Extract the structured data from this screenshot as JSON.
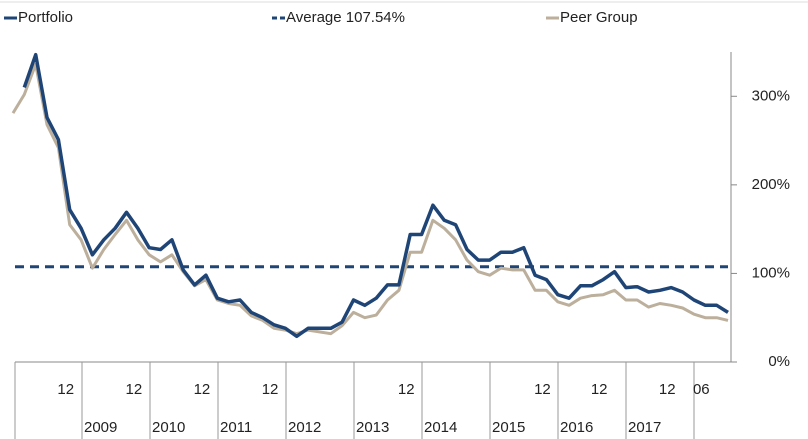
{
  "chart_data": {
    "type": "line",
    "categories": [
      null,
      null,
      null,
      null,
      null,
      "12",
      null,
      null,
      null,
      null,
      null,
      "12",
      null,
      null,
      null,
      null,
      null,
      "12",
      null,
      null,
      null,
      null,
      null,
      "12",
      null,
      null,
      null,
      null,
      null,
      null,
      null,
      null,
      null,
      null,
      null,
      "12",
      null,
      null,
      null,
      null,
      null,
      null,
      null,
      null,
      null,
      null,
      null,
      "12",
      null,
      null,
      null,
      null,
      "12",
      null,
      null,
      null,
      null,
      null,
      "12",
      null,
      null,
      "06",
      null,
      null
    ],
    "years": [
      "2009",
      "2010",
      "2011",
      "2012",
      "2013",
      "2014",
      "2015",
      "2016",
      "2017"
    ],
    "series": [
      {
        "name": "Portfolio",
        "color": "#1f4577",
        "values": [
          null,
          310,
          347,
          276,
          251,
          172,
          151,
          121,
          138,
          151,
          169,
          151,
          129,
          127,
          138,
          104,
          87,
          98,
          72,
          68,
          70,
          56,
          50,
          42,
          38,
          29,
          38,
          38,
          38,
          45,
          70,
          64,
          72,
          87,
          87,
          144,
          144,
          177,
          160,
          155,
          127,
          115,
          115,
          124,
          124,
          129,
          98,
          93,
          76,
          72,
          86,
          86,
          93,
          102,
          84,
          85,
          79,
          81,
          84,
          79,
          70,
          64,
          64,
          56
        ]
      },
      {
        "name": "Peer Group",
        "color": "#bcaf9c",
        "values": [
          281,
          302,
          336,
          268,
          242,
          155,
          138,
          106,
          127,
          144,
          160,
          138,
          121,
          113,
          121,
          102,
          86,
          93,
          70,
          66,
          64,
          52,
          47,
          38,
          36,
          32,
          36,
          34,
          32,
          41,
          56,
          50,
          53,
          70,
          81,
          124,
          124,
          160,
          151,
          138,
          115,
          102,
          98,
          106,
          104,
          104,
          81,
          81,
          68,
          64,
          72,
          75,
          76,
          81,
          70,
          70,
          62,
          66,
          64,
          61,
          54,
          50,
          50,
          47
        ]
      }
    ],
    "average": {
      "name": "Average 107.54%",
      "value": 107.54,
      "color": "#1f4577"
    },
    "ylim": [
      0,
      350
    ],
    "yticks": [
      {
        "value": 0,
        "label": "0%"
      },
      {
        "value": 100,
        "label": "100%"
      },
      {
        "value": 200,
        "label": "200%"
      },
      {
        "value": 300,
        "label": "300%"
      }
    ]
  }
}
